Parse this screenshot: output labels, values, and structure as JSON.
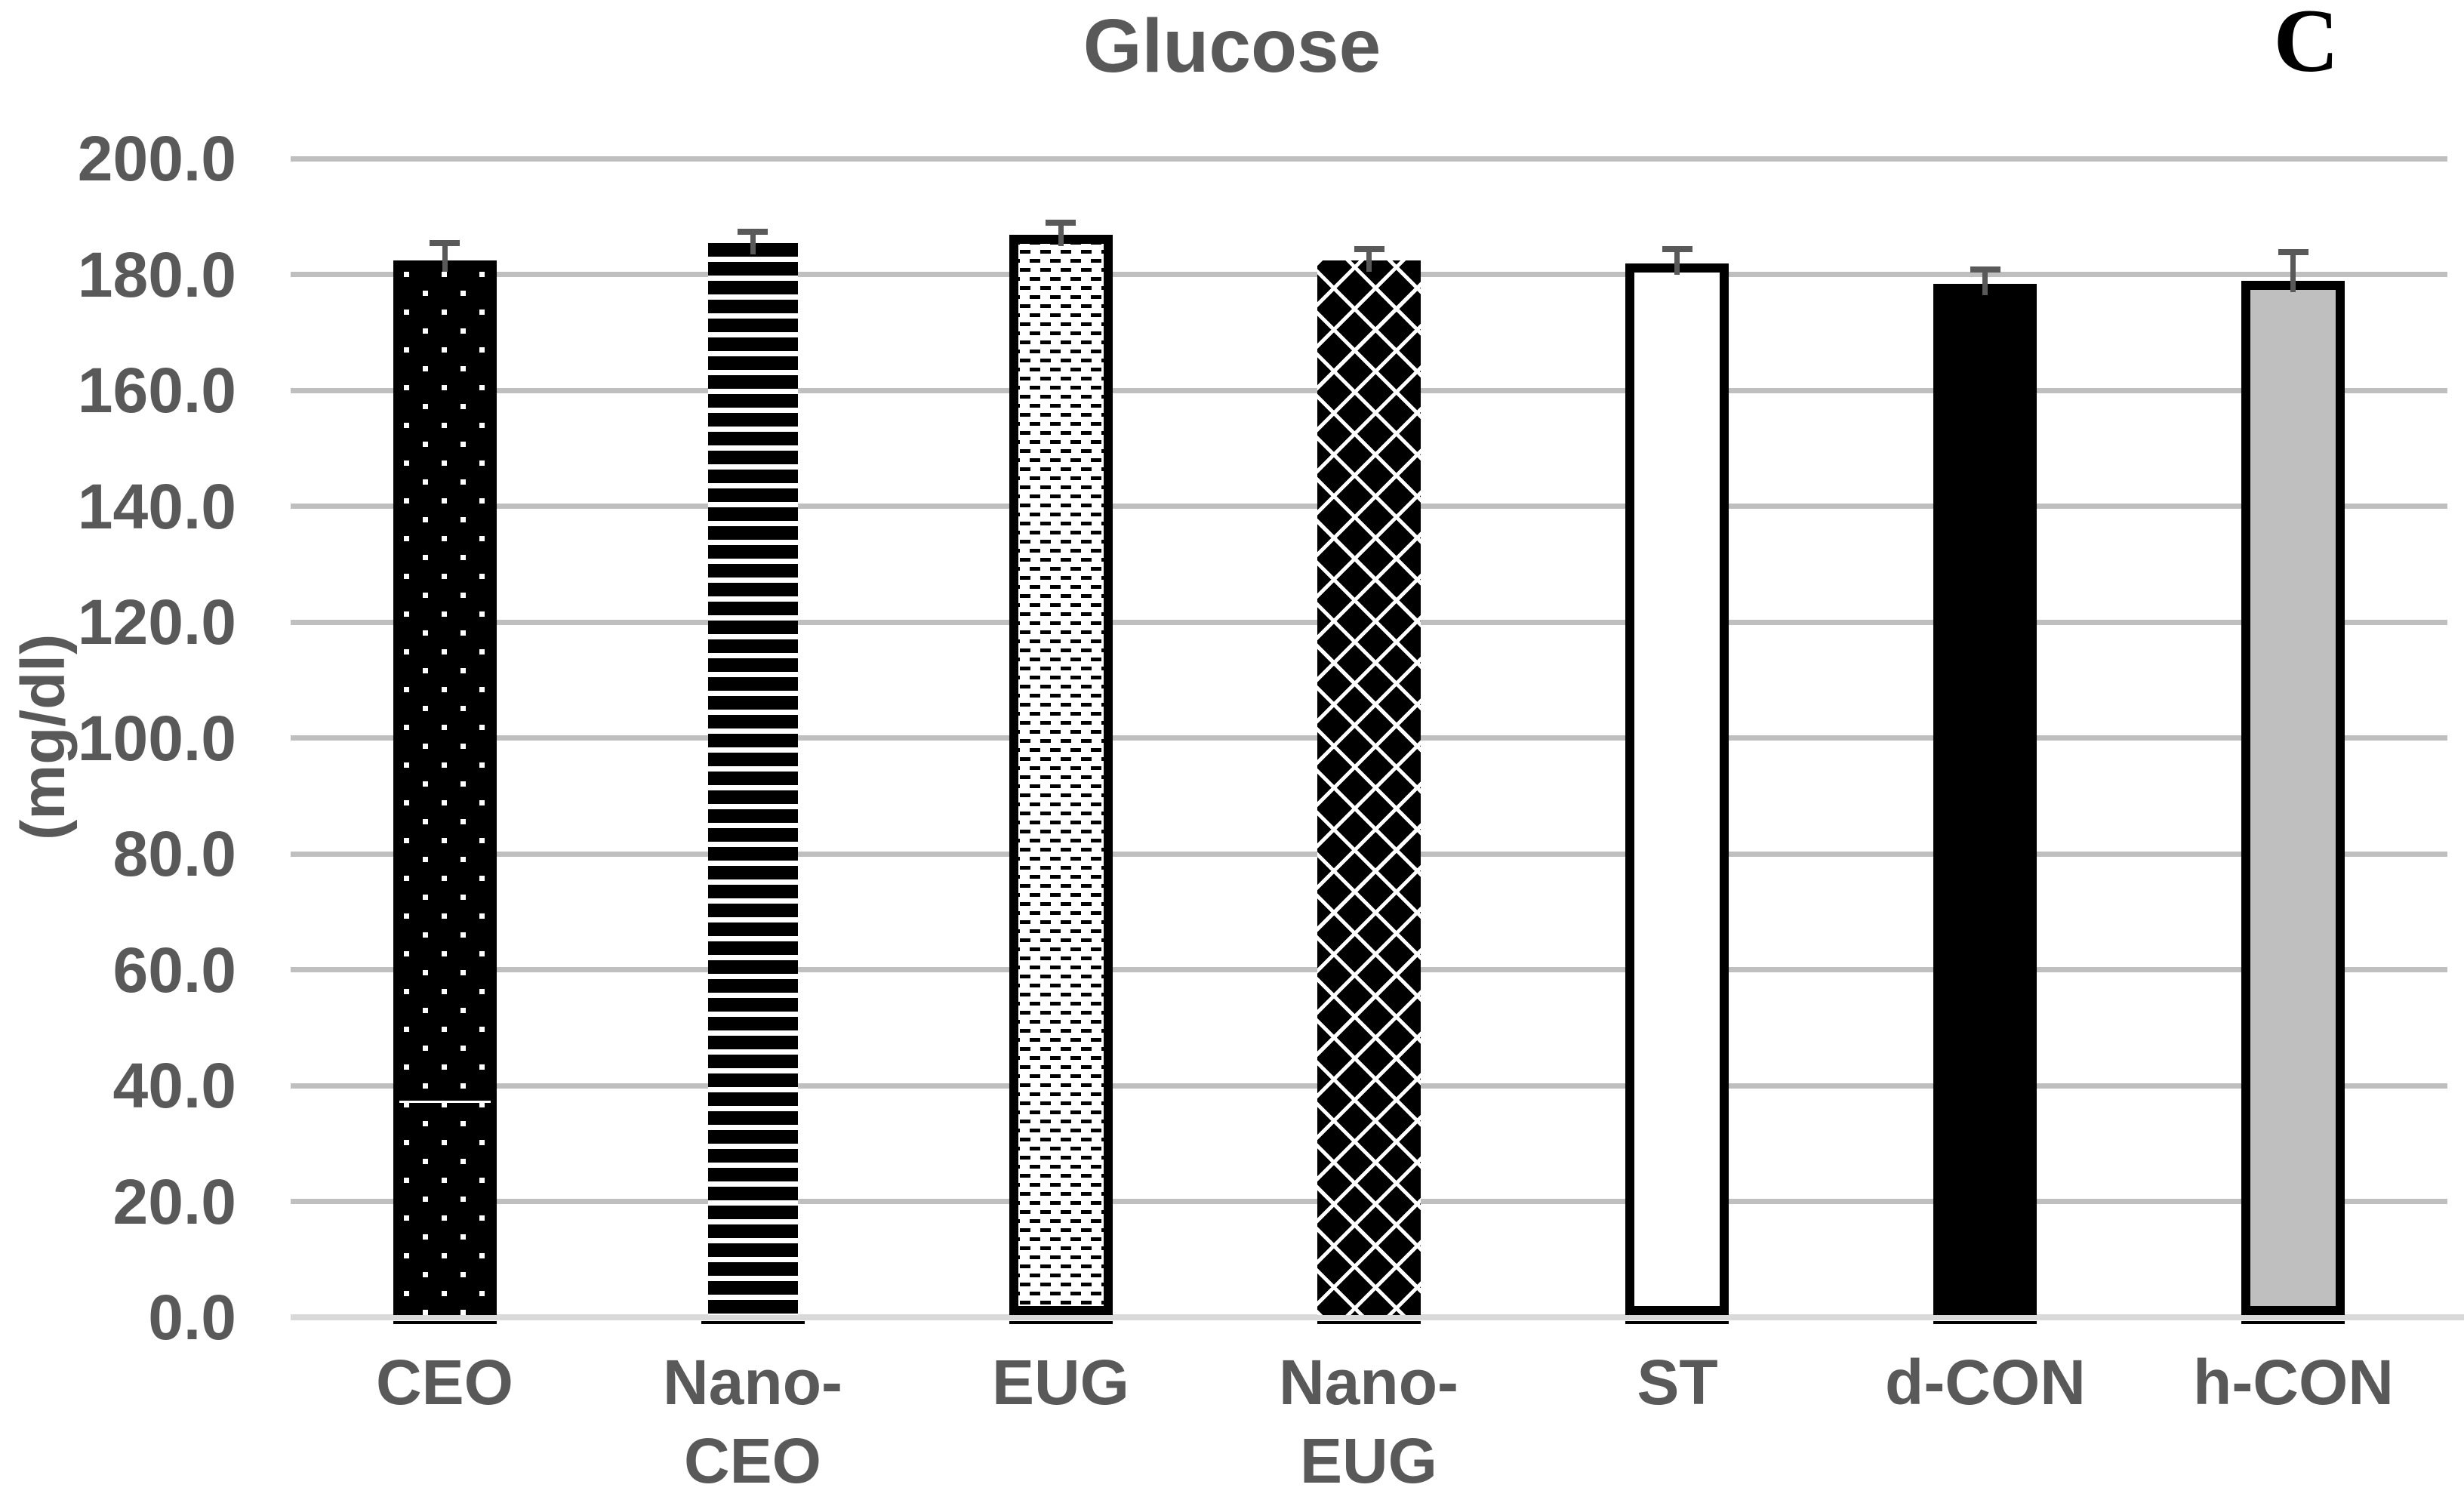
{
  "chart_data": {
    "type": "bar",
    "title": "Glucose",
    "panel_label": "C",
    "ylabel": "(mg/dl)",
    "xlabel": "",
    "categories": [
      "CEO",
      "Nano-CEO",
      "EUG",
      "Nano-EUG",
      "ST",
      "d-CON",
      "h-CON"
    ],
    "values": [
      182,
      185,
      186.5,
      182,
      181.5,
      178,
      178.5
    ],
    "errors": [
      3,
      2,
      2,
      2,
      2.5,
      2.5,
      5
    ],
    "bar_patterns": [
      "black-white-dots",
      "black-white-hstripes",
      "white-black-dashes",
      "black-white-crosshatch",
      "white-plain",
      "black-solid",
      "gray-solid"
    ],
    "ylim": [
      0,
      200
    ],
    "ytick_interval": 20,
    "ytick_labels": [
      "0.0",
      "20.0",
      "40.0",
      "60.0",
      "80.0",
      "100.0",
      "120.0",
      "140.0",
      "160.0",
      "180.0",
      "200.0"
    ],
    "grid": true,
    "legend": "none",
    "annotations": {
      "ceo_bar_inner_white_line_value": 37
    },
    "colors": {
      "text": "#595959",
      "gridline": "#BFBFBF",
      "axis_line": "#D9D9D9",
      "error_bar": "#595959",
      "gray_bar_fill": "#BFBFBF",
      "panel_label": "#000000",
      "background": "#ffffff"
    }
  }
}
